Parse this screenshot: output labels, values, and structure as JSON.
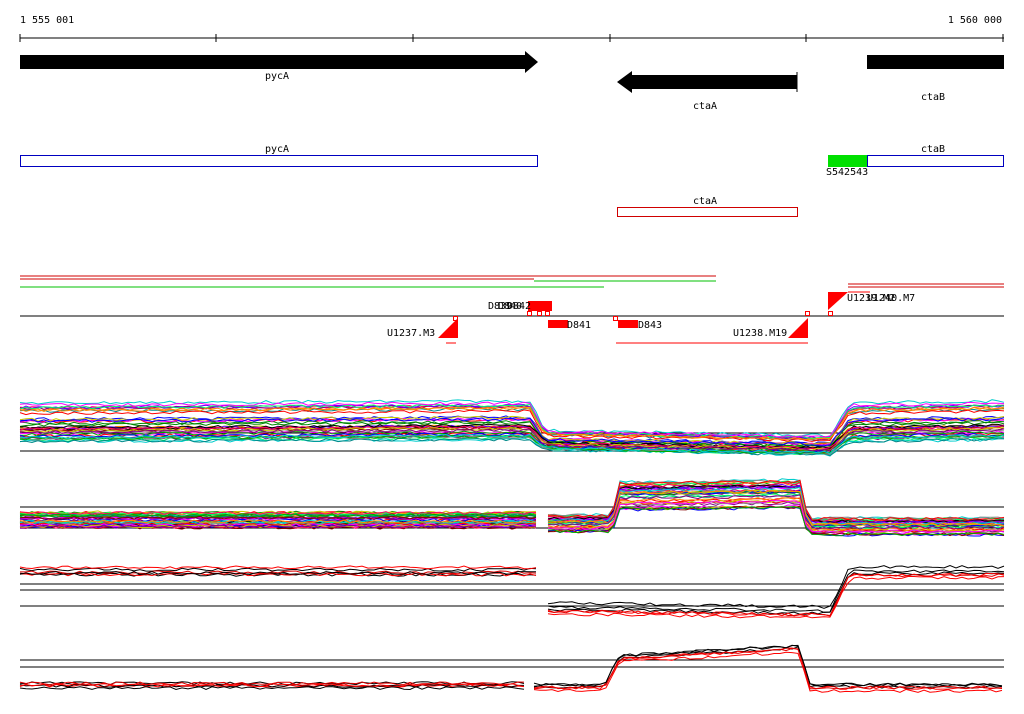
{
  "ruler": {
    "start": "1 555 001",
    "end": "1 560 000"
  },
  "genes": [
    {
      "label": "pycA"
    },
    {
      "label": "ctaA"
    },
    {
      "label": "ctaB"
    }
  ],
  "annotations": [
    {
      "label": "pycA"
    },
    {
      "label": "ctaB"
    },
    {
      "label": "S542543"
    },
    {
      "label": "ctaA"
    }
  ],
  "features": [
    {
      "label": "D839"
    },
    {
      "label": "D840"
    },
    {
      "label": "D842"
    },
    {
      "label": "D841"
    },
    {
      "label": "D843"
    },
    {
      "label": "U1237.M3"
    },
    {
      "label": "U1238.M19"
    },
    {
      "label": "U1239.M2"
    },
    {
      "label": "U1240.M7"
    }
  ]
}
